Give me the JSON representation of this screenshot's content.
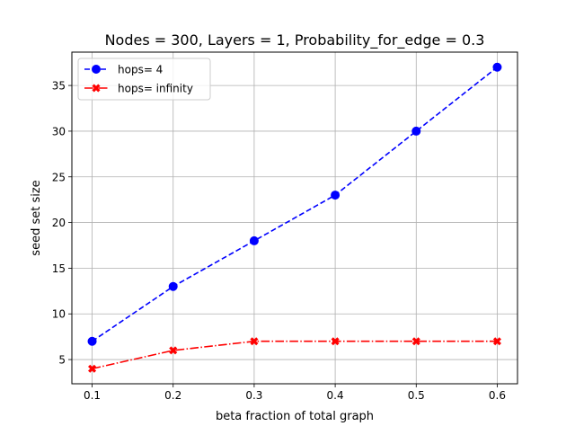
{
  "chart_data": {
    "type": "line",
    "title": "Nodes = 300, Layers = 1, Probability_for_edge = 0.3",
    "xlabel": "beta fraction of total graph",
    "ylabel": "seed set size",
    "x": [
      0.1,
      0.2,
      0.3,
      0.4,
      0.5,
      0.6
    ],
    "xticks": [
      "0.1",
      "0.2",
      "0.3",
      "0.4",
      "0.5",
      "0.6"
    ],
    "yticks": [
      "5",
      "10",
      "15",
      "20",
      "25",
      "30",
      "35"
    ],
    "xlim": [
      0.075,
      0.625
    ],
    "ylim": [
      2.35,
      38.65
    ],
    "grid": true,
    "legend_position": "top-left",
    "series": [
      {
        "name": "hops= 4",
        "values": [
          7,
          13,
          18,
          23,
          30,
          37
        ],
        "color": "#0000ff",
        "marker": "circle",
        "linestyle": "dashed"
      },
      {
        "name": "hops= infinity",
        "values": [
          4,
          6,
          7,
          7,
          7,
          7
        ],
        "color": "#ff0000",
        "marker": "x",
        "linestyle": "dashdot"
      }
    ]
  }
}
